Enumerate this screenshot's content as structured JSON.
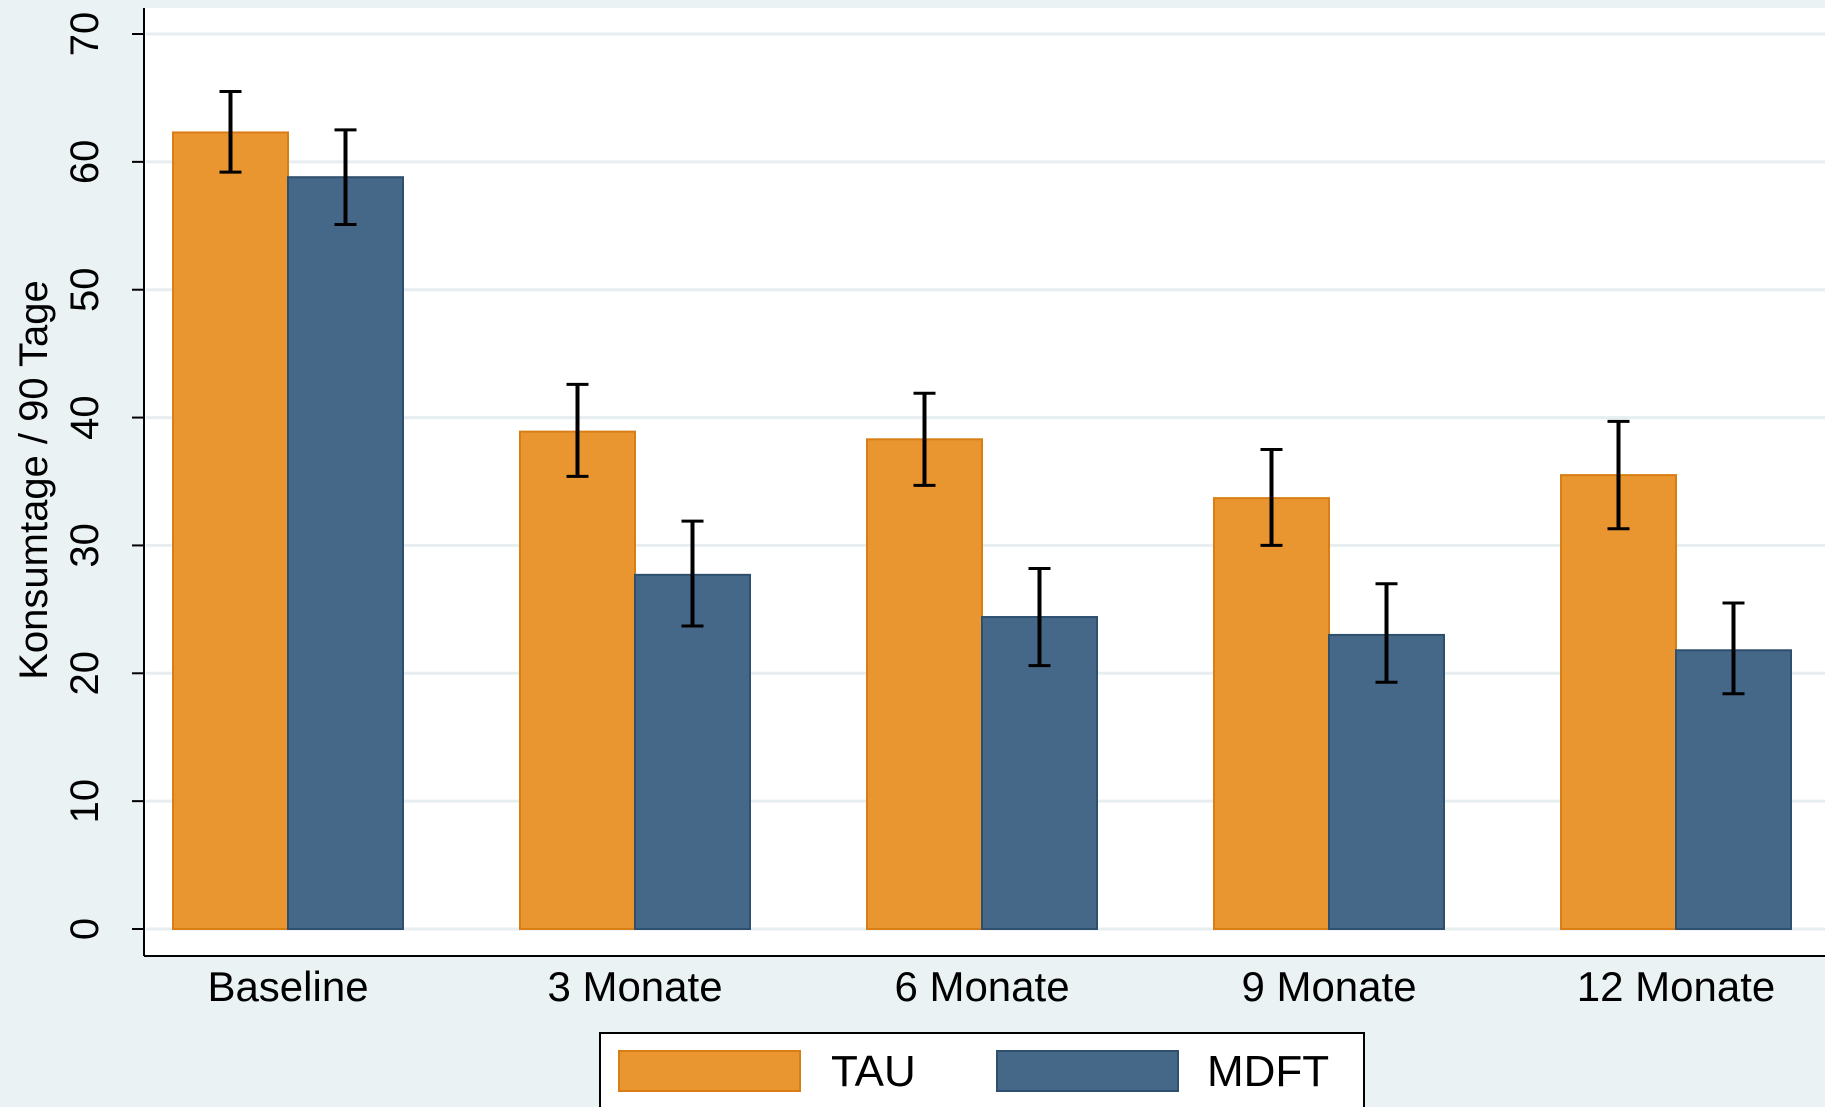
{
  "chart_data": {
    "type": "bar",
    "title": "",
    "xlabel": "",
    "ylabel": "Konsumtage / 90 Tage",
    "categories": [
      "Baseline",
      "3 Monate",
      "6 Monate",
      "9 Monate",
      "12 Monate"
    ],
    "series": [
      {
        "name": "TAU",
        "color": "#e99530",
        "edge_color": "#d97e14",
        "values": [
          62.3,
          38.9,
          38.3,
          33.7,
          35.5
        ],
        "ci_low": [
          59.2,
          35.4,
          34.7,
          30.0,
          31.3
        ],
        "ci_high": [
          65.5,
          42.6,
          41.9,
          37.5,
          39.7
        ]
      },
      {
        "name": "MDFT",
        "color": "#466888",
        "edge_color": "#2f4f6e",
        "values": [
          58.8,
          27.7,
          24.4,
          23.0,
          21.8
        ],
        "ci_low": [
          55.1,
          23.7,
          20.6,
          19.3,
          18.4
        ],
        "ci_high": [
          62.5,
          31.9,
          28.2,
          27.0,
          25.5
        ]
      }
    ],
    "ylim": [
      0,
      70
    ],
    "yticks": [
      0,
      10,
      20,
      30,
      40,
      50,
      60,
      70
    ],
    "grid": true,
    "legend_position": "bottom-center"
  }
}
